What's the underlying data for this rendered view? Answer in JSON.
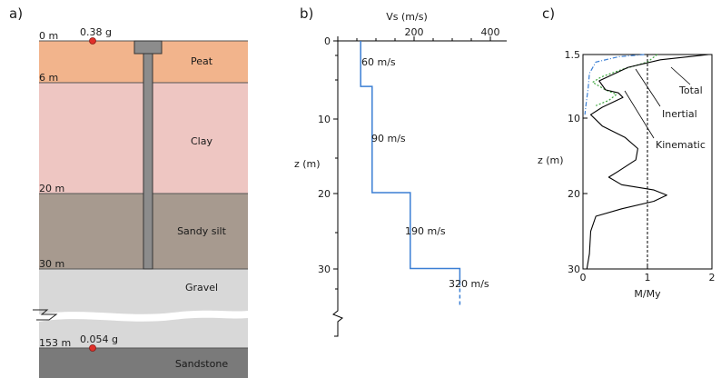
{
  "panels": {
    "a": "a)",
    "b": "b)",
    "c": "c)"
  },
  "soil_profile": {
    "colors": {
      "peat": "#f2b48c",
      "clay": "#eec6c2",
      "sandy_silt": "#a79a8f",
      "gravel": "#d8d8d8",
      "sandstone": "#7a7a7a",
      "pile": "#8c8c8c",
      "marker": "#e0302a"
    },
    "depth_labels": [
      "0 m",
      "6 m",
      "20 m",
      "30 m",
      "153 m"
    ],
    "layers": [
      "Peat",
      "Clay",
      "Sandy silt",
      "Gravel",
      "Sandstone"
    ],
    "accel_top": "0.38 g",
    "accel_base": "0.054 g"
  },
  "vs_profile": {
    "x_title": "Vs (m/s)",
    "x_ticks": [
      "200",
      "400"
    ],
    "y_title": "z (m)",
    "y_ticks": [
      "0",
      "10",
      "20",
      "30"
    ],
    "line_color": "#3b7fd4",
    "labels": [
      "60 m/s",
      "90 m/s",
      "190 m/s",
      "320 m/s"
    ],
    "steps": [
      {
        "vs": 60,
        "z_top": 0,
        "z_bot": 6
      },
      {
        "vs": 90,
        "z_top": 6,
        "z_bot": 20
      },
      {
        "vs": 190,
        "z_top": 20,
        "z_bot": 30
      },
      {
        "vs": 320,
        "z_top": 30,
        "z_bot": 35
      }
    ]
  },
  "moment_profile": {
    "y_title": "z (m)",
    "y_ticks": [
      "1.5",
      "10",
      "20",
      "30"
    ],
    "x_title": "M/My",
    "x_ticks": [
      "0",
      "1",
      "2"
    ],
    "series_labels": [
      "Total",
      "Inertial",
      "Kinematic"
    ],
    "colors": {
      "total": "#000000",
      "inertial": "#3b7fd4",
      "kinematic": "#3aa63a",
      "reference": "#000000"
    },
    "total": [
      [
        1.95,
        1.5
      ],
      [
        1.2,
        2.2
      ],
      [
        0.7,
        3.2
      ],
      [
        0.45,
        4.2
      ],
      [
        0.25,
        5
      ],
      [
        0.35,
        6.2
      ],
      [
        0.55,
        6.6
      ],
      [
        0.62,
        7.2
      ],
      [
        0.3,
        8.5
      ],
      [
        0.12,
        9.5
      ],
      [
        0.3,
        11
      ],
      [
        0.65,
        12.5
      ],
      [
        0.85,
        14
      ],
      [
        0.82,
        15.5
      ],
      [
        0.55,
        17
      ],
      [
        0.4,
        17.8
      ],
      [
        0.6,
        18.8
      ],
      [
        1.1,
        19.5
      ],
      [
        1.3,
        20.2
      ],
      [
        1.1,
        21
      ],
      [
        0.6,
        22
      ],
      [
        0.2,
        23
      ],
      [
        0.12,
        25
      ],
      [
        0.1,
        28
      ],
      [
        0.06,
        30
      ]
    ],
    "inertial": [
      [
        0.95,
        1.5
      ],
      [
        0.55,
        1.8
      ],
      [
        0.2,
        2.5
      ],
      [
        0.1,
        4
      ],
      [
        0.08,
        6
      ],
      [
        0.05,
        8
      ],
      [
        0.03,
        9.5
      ]
    ],
    "kinematic": [
      [
        1.15,
        1.5
      ],
      [
        1.0,
        2.5
      ],
      [
        0.6,
        3.5
      ],
      [
        0.28,
        4.5
      ],
      [
        0.15,
        5.2
      ],
      [
        0.35,
        6.2
      ],
      [
        0.52,
        6.8
      ],
      [
        0.4,
        7.6
      ],
      [
        0.2,
        8.3
      ]
    ]
  }
}
